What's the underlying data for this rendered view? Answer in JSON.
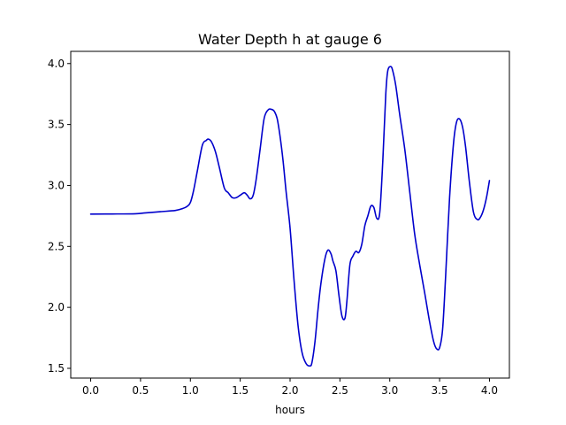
{
  "chart_data": {
    "type": "line",
    "title": "Water Depth h at gauge 6",
    "xlabel": "hours",
    "ylabel": "",
    "xlim": [
      -0.2,
      4.2
    ],
    "ylim": [
      1.42,
      4.1
    ],
    "xticks": [
      0.0,
      0.5,
      1.0,
      1.5,
      2.0,
      2.5,
      3.0,
      3.5,
      4.0
    ],
    "xtick_labels": [
      "0.0",
      "0.5",
      "1.0",
      "1.5",
      "2.0",
      "2.5",
      "3.0",
      "3.5",
      "4.0"
    ],
    "yticks": [
      1.5,
      2.0,
      2.5,
      3.0,
      3.5,
      4.0
    ],
    "ytick_labels": [
      "1.5",
      "2.0",
      "2.5",
      "3.0",
      "3.5",
      "4.0"
    ],
    "grid": false,
    "series": [
      {
        "color": "#0000cc",
        "x": [
          0.0,
          0.2,
          0.45,
          0.55,
          0.7,
          0.85,
          0.92,
          0.97,
          1.0,
          1.03,
          1.07,
          1.12,
          1.16,
          1.18,
          1.21,
          1.25,
          1.29,
          1.34,
          1.38,
          1.42,
          1.46,
          1.5,
          1.54,
          1.57,
          1.6,
          1.63,
          1.66,
          1.7,
          1.74,
          1.78,
          1.81,
          1.84,
          1.87,
          1.9,
          1.93,
          1.96,
          2.0,
          2.04,
          2.08,
          2.12,
          2.16,
          2.2,
          2.22,
          2.25,
          2.28,
          2.31,
          2.35,
          2.38,
          2.41,
          2.43,
          2.46,
          2.49,
          2.52,
          2.55,
          2.57,
          2.6,
          2.63,
          2.66,
          2.69,
          2.72,
          2.75,
          2.78,
          2.81,
          2.84,
          2.87,
          2.9,
          2.93,
          2.96,
          2.98,
          3.01,
          3.03,
          3.06,
          3.1,
          3.15,
          3.2,
          3.25,
          3.3,
          3.35,
          3.4,
          3.44,
          3.47,
          3.5,
          3.53,
          3.56,
          3.6,
          3.64,
          3.67,
          3.7,
          3.73,
          3.76,
          3.8,
          3.84,
          3.88,
          3.91,
          3.94,
          3.97,
          4.0
        ],
        "values": [
          2.765,
          2.766,
          2.768,
          2.775,
          2.785,
          2.795,
          2.81,
          2.83,
          2.86,
          2.95,
          3.12,
          3.33,
          3.37,
          3.38,
          3.36,
          3.28,
          3.15,
          2.98,
          2.94,
          2.9,
          2.9,
          2.92,
          2.94,
          2.92,
          2.89,
          2.92,
          3.05,
          3.3,
          3.55,
          3.62,
          3.625,
          3.61,
          3.55,
          3.4,
          3.2,
          2.95,
          2.65,
          2.22,
          1.85,
          1.63,
          1.54,
          1.52,
          1.55,
          1.72,
          1.98,
          2.2,
          2.4,
          2.47,
          2.44,
          2.38,
          2.3,
          2.1,
          1.93,
          1.91,
          2.05,
          2.35,
          2.42,
          2.46,
          2.45,
          2.52,
          2.67,
          2.75,
          2.83,
          2.82,
          2.73,
          2.78,
          3.2,
          3.75,
          3.94,
          3.975,
          3.94,
          3.82,
          3.58,
          3.3,
          2.95,
          2.6,
          2.35,
          2.12,
          1.88,
          1.72,
          1.66,
          1.67,
          1.82,
          2.25,
          2.9,
          3.35,
          3.52,
          3.545,
          3.48,
          3.32,
          3.02,
          2.78,
          2.72,
          2.74,
          2.8,
          2.9,
          3.04
        ]
      }
    ]
  }
}
